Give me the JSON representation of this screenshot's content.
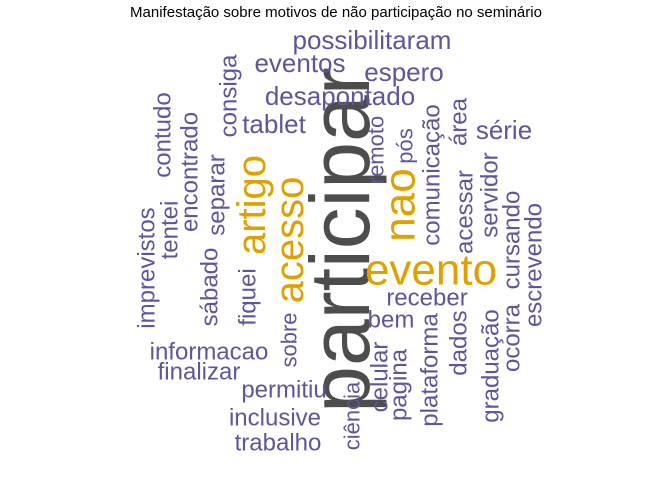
{
  "title": "Manifestação sobre motivos de não participação no seminário",
  "colors": {
    "large": "#4d4d4d",
    "medium": "#e0a100",
    "small": "#5e569b"
  },
  "words": [
    {
      "text": "participar",
      "tier": "large"
    },
    {
      "text": "evento",
      "tier": "medium"
    },
    {
      "text": "nao",
      "tier": "medium"
    },
    {
      "text": "acesso",
      "tier": "medium"
    },
    {
      "text": "artigo",
      "tier": "medium"
    },
    {
      "text": "possibilitaram",
      "tier": "small"
    },
    {
      "text": "eventos",
      "tier": "small"
    },
    {
      "text": "espero",
      "tier": "small"
    },
    {
      "text": "desapontado",
      "tier": "small"
    },
    {
      "text": "tablet",
      "tier": "small"
    },
    {
      "text": "consiga",
      "tier": "small"
    },
    {
      "text": "contudo",
      "tier": "small"
    },
    {
      "text": "encontrado",
      "tier": "small"
    },
    {
      "text": "tentei",
      "tier": "small"
    },
    {
      "text": "imprevistos",
      "tier": "small"
    },
    {
      "text": "separar",
      "tier": "small"
    },
    {
      "text": "sábado",
      "tier": "small"
    },
    {
      "text": "fiquei",
      "tier": "small"
    },
    {
      "text": "remoto",
      "tier": "small"
    },
    {
      "text": "pós",
      "tier": "small"
    },
    {
      "text": "comunicação",
      "tier": "small"
    },
    {
      "text": "área",
      "tier": "small"
    },
    {
      "text": "acessar",
      "tier": "small"
    },
    {
      "text": "série",
      "tier": "small"
    },
    {
      "text": "servidor",
      "tier": "small"
    },
    {
      "text": "cursando",
      "tier": "small"
    },
    {
      "text": "escrevendo",
      "tier": "small"
    },
    {
      "text": "receber",
      "tier": "small"
    },
    {
      "text": "bem",
      "tier": "small"
    },
    {
      "text": "informacao",
      "tier": "small"
    },
    {
      "text": "sobre",
      "tier": "small"
    },
    {
      "text": "finalizar",
      "tier": "small"
    },
    {
      "text": "celular",
      "tier": "small"
    },
    {
      "text": "pagina",
      "tier": "small"
    },
    {
      "text": "plataforma",
      "tier": "small"
    },
    {
      "text": "dados",
      "tier": "small"
    },
    {
      "text": "graduação",
      "tier": "small"
    },
    {
      "text": "ocorra",
      "tier": "small"
    },
    {
      "text": "permitiu",
      "tier": "small"
    },
    {
      "text": "inclusive",
      "tier": "small"
    },
    {
      "text": "trabalho",
      "tier": "small"
    },
    {
      "text": "ciência",
      "tier": "small"
    }
  ]
}
